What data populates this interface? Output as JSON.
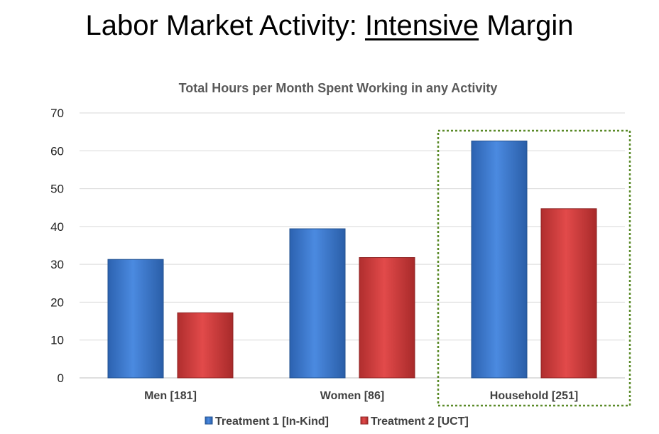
{
  "slide": {
    "title_prefix": "Labor Market Activity: ",
    "title_emphasis": "Intensive",
    "title_suffix": " Margin"
  },
  "chart_data": {
    "type": "bar",
    "title": "Total Hours per Month Spent Working in any Activity",
    "categories": [
      "Men [181]",
      "Women [86]",
      "Household [251]"
    ],
    "series": [
      {
        "name": "Treatment 1 [In-Kind]",
        "values": [
          31.3,
          39.4,
          62.6
        ],
        "color": "#3f7fd6"
      },
      {
        "name": "Treatment 2 [UCT]",
        "values": [
          17.2,
          31.8,
          44.7
        ],
        "color": "#d64545"
      }
    ],
    "ylim": [
      0,
      70
    ],
    "yticks": [
      0,
      10,
      20,
      30,
      40,
      50,
      60,
      70
    ],
    "grid": true,
    "legend": "bottom",
    "highlight_category": "Household [251]",
    "highlight_color": "#5a8a28"
  }
}
